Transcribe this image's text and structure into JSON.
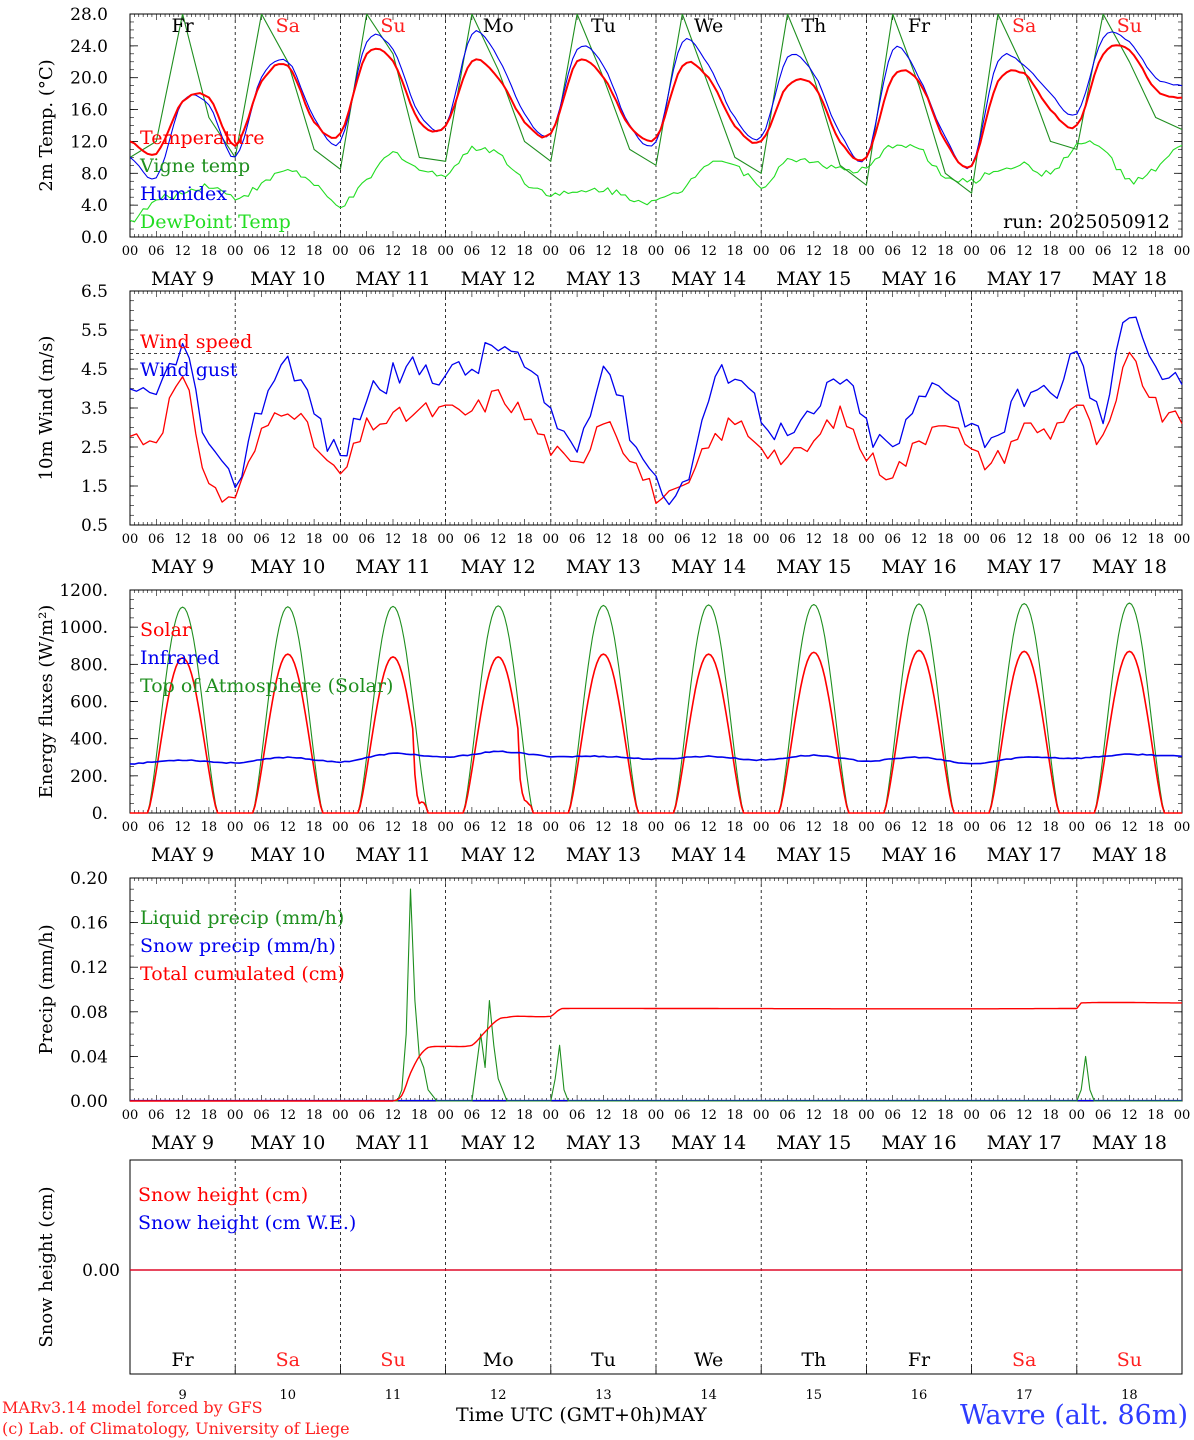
{
  "colors": {
    "red": "#ff0000",
    "dark_green": "#1f8f1f",
    "blue": "#0000ee",
    "light_green": "#22dd22",
    "weekday_red": "#ff2020",
    "station_blue": "#2e3cff",
    "grid": "#000000"
  },
  "days": {
    "weekdays": [
      "Fr",
      "Sa",
      "Su",
      "Mo",
      "Tu",
      "We",
      "Th",
      "Fr",
      "Sa",
      "Su"
    ],
    "weekend_flags": [
      false,
      true,
      true,
      false,
      false,
      false,
      false,
      false,
      true,
      true
    ],
    "dates": [
      "MAY  9",
      "MAY 10",
      "MAY 11",
      "MAY 12",
      "MAY 13",
      "MAY 14",
      "MAY 15",
      "MAY 16",
      "MAY 17",
      "MAY 18"
    ],
    "day_numbers": [
      "9",
      "10",
      "11",
      "12",
      "13",
      "14",
      "15",
      "16",
      "17",
      "18"
    ],
    "hour_ticks": [
      "00",
      "06",
      "12",
      "18"
    ],
    "last_hour_tick": "00"
  },
  "footer": {
    "model": "MARv3.14 model forced by GFS",
    "lab": "(c) Lab. of Climatology, University of Liege",
    "xlabel": "Time UTC (GMT+0h)MAY",
    "station": "Wavre (alt. 86m)"
  },
  "chart_data": [
    {
      "type": "line",
      "ylabel": "2m Temp. (°C)",
      "ylim": [
        0,
        28
      ],
      "ytick_labels": [
        "0.0",
        "4.0",
        "8.0",
        "12.0",
        "16.0",
        "20.0",
        "24.0",
        "28.0"
      ],
      "annotation": "run: 2025050912",
      "x_hours": [
        0,
        6,
        12,
        18,
        24,
        30,
        36,
        42,
        48,
        54,
        60,
        66,
        72,
        78,
        84,
        90,
        96,
        102,
        108,
        114,
        120,
        126,
        132,
        138,
        144,
        150,
        156,
        162,
        168,
        174,
        180,
        186,
        192,
        198,
        204,
        210,
        216,
        222,
        228,
        234,
        240
      ],
      "series": [
        {
          "name": "Temperature",
          "color": "red",
          "values": [
            12.0,
            10.5,
            17.0,
            17.5,
            11.5,
            19.5,
            21.5,
            14.5,
            13.0,
            23.0,
            22.0,
            14.5,
            14.0,
            22.0,
            20.0,
            14.5,
            13.0,
            22.0,
            20.0,
            14.0,
            12.5,
            21.5,
            20.0,
            14.0,
            12.0,
            19.0,
            19.0,
            12.0,
            10.0,
            20.0,
            19.5,
            12.0,
            9.0,
            19.5,
            20.5,
            16.0,
            14.0,
            23.0,
            23.5,
            18.5,
            17.5
          ]
        },
        {
          "name": "Vigne temp",
          "color": "dark_green",
          "values": [
            10.0,
            12.0,
            28.0,
            15.0,
            10.0,
            28.0,
            22.0,
            11.0,
            8.5,
            28.0,
            23.0,
            10.0,
            9.5,
            28.0,
            21.0,
            12.0,
            9.5,
            28.0,
            20.0,
            11.0,
            9.0,
            28.0,
            19.0,
            10.0,
            8.0,
            28.0,
            20.0,
            9.0,
            6.5,
            28.0,
            19.0,
            8.0,
            5.5,
            28.0,
            21.0,
            12.0,
            11.0,
            28.0,
            22.0,
            15.0,
            13.5
          ]
        },
        {
          "name": "Humidex",
          "color": "blue",
          "values": [
            10.0,
            7.5,
            17.0,
            16.5,
            10.0,
            20.0,
            22.0,
            15.0,
            12.0,
            24.5,
            23.5,
            15.5,
            14.0,
            25.5,
            22.5,
            15.5,
            13.0,
            23.5,
            21.5,
            14.0,
            12.0,
            24.5,
            21.5,
            15.0,
            12.5,
            22.5,
            20.5,
            13.0,
            10.0,
            23.5,
            20.0,
            12.5,
            9.0,
            22.0,
            21.5,
            18.0,
            15.5,
            25.0,
            24.5,
            20.0,
            19.0
          ]
        },
        {
          "name": "DewPoint Temp",
          "color": "light_green",
          "values": [
            2.0,
            4.5,
            5.5,
            6.5,
            5.0,
            6.5,
            8.5,
            6.5,
            4.0,
            7.0,
            10.5,
            8.5,
            8.0,
            11.0,
            10.5,
            7.0,
            5.5,
            5.5,
            6.0,
            5.0,
            4.5,
            6.0,
            9.5,
            9.0,
            6.5,
            9.5,
            9.5,
            8.5,
            8.5,
            11.5,
            11.0,
            7.5,
            7.0,
            8.5,
            9.0,
            8.0,
            11.5,
            11.0,
            7.0,
            8.5,
            11.5
          ]
        }
      ]
    },
    {
      "type": "line",
      "ylabel": "10m Wind (m/s)",
      "ylim": [
        0.5,
        6.5
      ],
      "ytick_labels": [
        "0.5",
        "1.5",
        "2.5",
        "3.5",
        "4.5",
        "5.5",
        "6.5"
      ],
      "reference_line": 4.9,
      "x_hours": [
        0,
        6,
        12,
        18,
        24,
        30,
        36,
        42,
        48,
        54,
        60,
        66,
        72,
        78,
        84,
        90,
        96,
        102,
        108,
        114,
        120,
        126,
        132,
        138,
        144,
        150,
        156,
        162,
        168,
        174,
        180,
        186,
        192,
        198,
        204,
        210,
        216,
        222,
        228,
        234,
        240
      ],
      "series": [
        {
          "name": "Wind speed",
          "color": "red",
          "values": [
            2.8,
            2.8,
            4.1,
            1.6,
            1.3,
            2.8,
            3.6,
            2.6,
            1.8,
            3.0,
            3.2,
            3.4,
            3.4,
            3.4,
            3.8,
            3.3,
            2.5,
            2.0,
            3.3,
            2.3,
            1.3,
            1.3,
            2.5,
            3.1,
            2.6,
            2.2,
            2.6,
            3.3,
            2.3,
            1.9,
            2.6,
            3.3,
            2.3,
            2.2,
            3.0,
            2.9,
            3.6,
            2.6,
            4.7,
            3.5,
            3.1
          ]
        },
        {
          "name": "Wind gust",
          "color": "blue",
          "values": [
            3.7,
            3.8,
            5.0,
            2.4,
            1.7,
            3.6,
            4.7,
            3.4,
            2.3,
            3.8,
            4.3,
            4.5,
            4.4,
            4.5,
            5.1,
            4.5,
            3.4,
            2.6,
            4.6,
            3.0,
            1.7,
            1.4,
            3.7,
            4.5,
            3.4,
            2.8,
            3.3,
            4.3,
            3.0,
            2.5,
            3.6,
            4.2,
            3.0,
            2.9,
            3.9,
            3.8,
            4.8,
            3.3,
            6.1,
            4.6,
            4.1
          ]
        }
      ]
    },
    {
      "type": "line",
      "ylabel": "Energy fluxes (W/m²)",
      "ylim": [
        0,
        1200
      ],
      "ytick_labels": [
        "0.",
        "200.",
        "400.",
        "600.",
        "800.",
        "1000.",
        "1200."
      ],
      "series": [
        {
          "name": "Solar",
          "color": "red",
          "daily_peak": [
            835,
            855,
            840,
            840,
            855,
            855,
            865,
            875,
            870,
            870
          ],
          "dips": [
            [
              7,
              140
            ],
            [
              13,
              60
            ]
          ]
        },
        {
          "name": "Infrared",
          "color": "blue",
          "x_hours": [
            0,
            12,
            24,
            36,
            48,
            60,
            72,
            84,
            96,
            108,
            120,
            132,
            144,
            156,
            168,
            180,
            192,
            204,
            216,
            228,
            240
          ],
          "values": [
            265,
            285,
            270,
            300,
            275,
            320,
            300,
            330,
            305,
            305,
            290,
            305,
            285,
            310,
            280,
            300,
            265,
            300,
            295,
            315,
            305
          ]
        },
        {
          "name": "Top of Atmosphere (Solar)",
          "color": "dark_green",
          "daily_peak": [
            1108,
            1110,
            1112,
            1115,
            1117,
            1120,
            1122,
            1125,
            1127,
            1130
          ]
        }
      ],
      "day_hours": {
        "sunrise": 4,
        "sunset": 20
      }
    },
    {
      "type": "line",
      "ylabel": "Precip (mm/h)",
      "ylim": [
        0,
        0.2
      ],
      "ytick_labels": [
        "0.00",
        "0.04",
        "0.08",
        "0.12",
        "0.16",
        "0.20"
      ],
      "series": [
        {
          "name": "Liquid precip (mm/h)",
          "color": "dark_green",
          "x_hours": [
            0,
            61,
            62,
            63,
            64,
            65,
            66,
            67,
            68,
            70,
            72,
            78,
            79,
            80,
            81,
            82,
            83,
            84,
            85,
            86,
            90,
            96,
            97,
            98,
            99,
            100,
            102,
            216,
            217,
            218,
            219,
            220,
            221,
            240
          ],
          "values": [
            0,
            0,
            0.01,
            0.06,
            0.19,
            0.09,
            0.04,
            0.03,
            0.01,
            0,
            0,
            0,
            0.03,
            0.06,
            0.03,
            0.09,
            0.05,
            0.02,
            0.01,
            0,
            0,
            0,
            0.02,
            0.05,
            0.01,
            0,
            0,
            0,
            0.01,
            0.04,
            0.01,
            0,
            0,
            0
          ]
        },
        {
          "name": "Snow precip (mm/h)",
          "color": "blue",
          "x_hours": [
            0,
            240
          ],
          "values": [
            0,
            0
          ]
        },
        {
          "name": "Total cumulated (cm)",
          "color": "red",
          "x_hours": [
            0,
            60,
            62,
            64,
            66,
            68,
            72,
            78,
            81,
            84,
            86,
            88,
            96,
            98,
            99,
            216,
            217,
            240
          ],
          "values": [
            0,
            0,
            0.005,
            0.025,
            0.04,
            0.048,
            0.049,
            0.05,
            0.062,
            0.073,
            0.075,
            0.076,
            0.076,
            0.082,
            0.083,
            0.083,
            0.088,
            0.088
          ]
        }
      ]
    },
    {
      "type": "line",
      "ylabel": "Snow height (cm)",
      "ytick_labels": [
        "0.00"
      ],
      "series": [
        {
          "name": "Snow height (cm)",
          "color": "red",
          "x_hours": [
            0,
            240
          ],
          "values": [
            0,
            0
          ]
        },
        {
          "name": "Snow height (cm W.E.)",
          "color": "blue",
          "x_hours": [
            0,
            240
          ],
          "values": [
            0,
            0
          ]
        }
      ]
    }
  ]
}
